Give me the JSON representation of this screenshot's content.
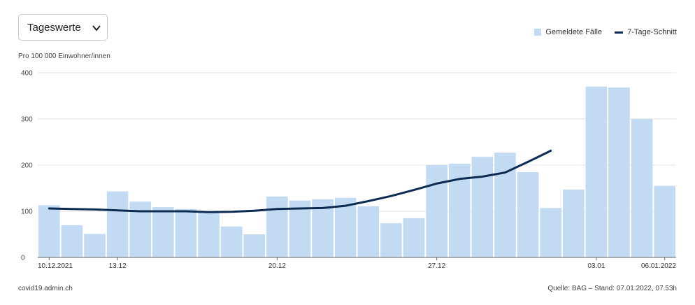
{
  "dropdown": {
    "selected": "Tageswerte"
  },
  "legend": {
    "bars_label": "Gemeldete Fälle",
    "line_label": "7-Tage-Schnitt"
  },
  "unit_label": "Pro 100 000 Einwohner/innen",
  "footer": {
    "source_site": "covid19.admin.ch",
    "source_note": "Quelle: BAG – Stand: 07.01.2022, 07.53h"
  },
  "colors": {
    "bars": "#c3dbf2",
    "line": "#0d2b50",
    "grid": "#e3e3e3",
    "axis": "#555555"
  },
  "chart_data": {
    "type": "bar",
    "x_start": "10.12.2021",
    "x_end": "06.01.2022",
    "tick_labels": [
      {
        "label": "10.12.2021",
        "index": 0
      },
      {
        "label": "13.12",
        "index": 3
      },
      {
        "label": "20.12",
        "index": 10
      },
      {
        "label": "27.12",
        "index": 17
      },
      {
        "label": "03.01",
        "index": 24
      },
      {
        "label": "06.01.2022",
        "index": 27
      }
    ],
    "ylim": [
      0,
      400
    ],
    "yticks": [
      0,
      100,
      200,
      300,
      400
    ],
    "grid": true,
    "legend_position": "top-right",
    "series": [
      {
        "name": "Gemeldete Fälle",
        "kind": "bar",
        "values": [
          113,
          70,
          51,
          143,
          121,
          109,
          105,
          98,
          67,
          50,
          132,
          123,
          126,
          129,
          111,
          74,
          85,
          200,
          203,
          218,
          227,
          185,
          107,
          147,
          370,
          368,
          300,
          155
        ]
      },
      {
        "name": "7-Tage-Schnitt",
        "kind": "line",
        "values": [
          106,
          105,
          104,
          102,
          100,
          100,
          100,
          98,
          99,
          101,
          105,
          106,
          107,
          112,
          122,
          133,
          146,
          160,
          170,
          175,
          184,
          207,
          231,
          null,
          null,
          null,
          null,
          null
        ]
      }
    ]
  }
}
